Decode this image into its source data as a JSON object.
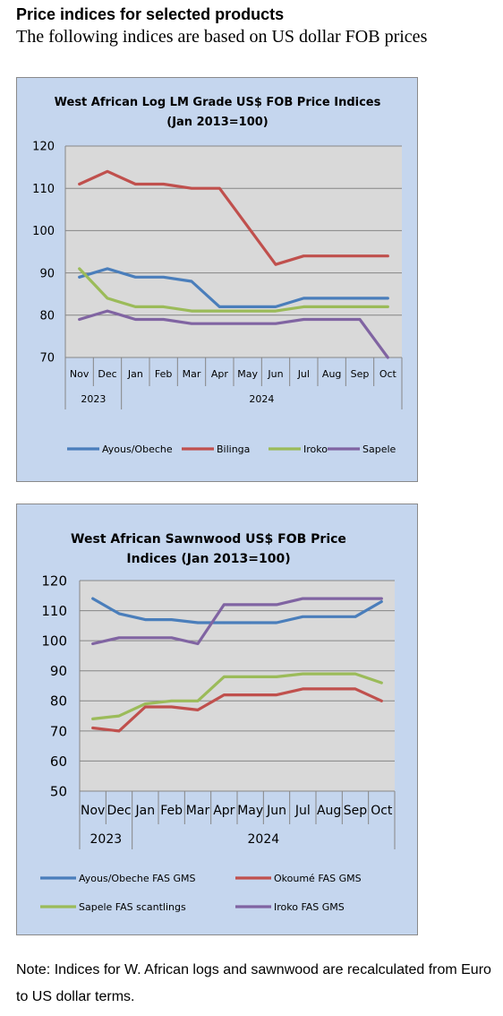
{
  "header": {
    "title": "Price indices for selected products",
    "subtitle": "The following indices are based on US dollar FOB prices"
  },
  "chart_data": [
    {
      "type": "line",
      "title_line1": "West African Log LM Grade US$ FOB Price Indices",
      "title_line2": "(Jan 2013=100)",
      "categories": [
        "Nov",
        "Dec",
        "Jan",
        "Feb",
        "Mar",
        "Apr",
        "May",
        "Jun",
        "Jul",
        "Aug",
        "Sep",
        "Oct"
      ],
      "year_labels": [
        "2023",
        "2024"
      ],
      "ylim": [
        70,
        120
      ],
      "yticks": [
        "70",
        "80",
        "90",
        "100",
        "110",
        "120"
      ],
      "grid": true,
      "legend_position": "bottom",
      "series": [
        {
          "name": "Ayous/Obeche",
          "color": "#4a7ebb",
          "values": [
            89,
            91,
            89,
            89,
            88,
            82,
            82,
            82,
            84,
            84,
            84,
            84
          ]
        },
        {
          "name": "Bilinga",
          "color": "#c0504d",
          "values": [
            111,
            114,
            111,
            111,
            110,
            110,
            101,
            92,
            94,
            94,
            94,
            94
          ]
        },
        {
          "name": "Iroko",
          "color": "#9bbb59",
          "values": [
            91,
            84,
            82,
            82,
            81,
            81,
            81,
            81,
            82,
            82,
            82,
            82
          ]
        },
        {
          "name": "Sapele",
          "color": "#8064a2",
          "values": [
            79,
            81,
            79,
            79,
            78,
            78,
            78,
            78,
            79,
            79,
            79,
            70
          ]
        }
      ]
    },
    {
      "type": "line",
      "title_line1": "West African Sawnwood US$ FOB Price",
      "title_line2": "Indices (Jan 2013=100)",
      "categories": [
        "Nov",
        "Dec",
        "Jan",
        "Feb",
        "Mar",
        "Apr",
        "May",
        "Jun",
        "Jul",
        "Aug",
        "Sep",
        "Oct"
      ],
      "year_labels": [
        "2023",
        "2024"
      ],
      "ylim": [
        50,
        120
      ],
      "yticks": [
        "50",
        "60",
        "70",
        "80",
        "90",
        "100",
        "110",
        "120"
      ],
      "grid": true,
      "legend_position": "bottom",
      "series": [
        {
          "name": "Ayous/Obeche  FAS GMS",
          "color": "#4a7ebb",
          "values": [
            114,
            109,
            107,
            107,
            106,
            106,
            106,
            106,
            108,
            108,
            108,
            113
          ]
        },
        {
          "name": "Okoumé  FAS GMS",
          "color": "#c0504d",
          "values": [
            71,
            70,
            78,
            78,
            77,
            82,
            82,
            82,
            84,
            84,
            84,
            80
          ]
        },
        {
          "name": "Sapele FAS scantlings",
          "color": "#9bbb59",
          "values": [
            74,
            75,
            79,
            80,
            80,
            88,
            88,
            88,
            89,
            89,
            89,
            86
          ]
        },
        {
          "name": "Iroko FAS GMS",
          "color": "#8064a2",
          "values": [
            99,
            101,
            101,
            101,
            99,
            112,
            112,
            112,
            114,
            114,
            114,
            114
          ]
        }
      ]
    }
  ],
  "note": "Note: Indices for W. African logs and sawnwood are recalculated from Euro to US dollar terms."
}
